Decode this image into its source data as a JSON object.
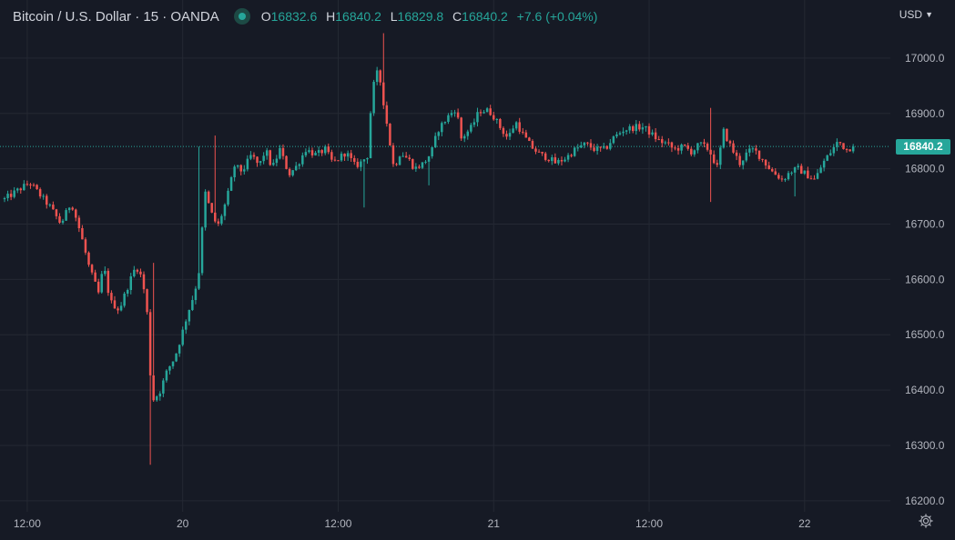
{
  "legend": {
    "symbol_title": "Bitcoin / U.S. Dollar · 15 · OANDA",
    "o_label": "O",
    "o_value": "16832.6",
    "h_label": "H",
    "h_value": "16840.2",
    "l_label": "L",
    "l_value": "16829.8",
    "c_label": "C",
    "c_value": "16840.2",
    "change": "+7.6 (+0.04%)"
  },
  "currency": {
    "label": "USD"
  },
  "last_price": {
    "label": "16840.2",
    "value": 16840.2
  },
  "colors": {
    "background": "#161a25",
    "grid": "#242833",
    "up": "#26a69a",
    "down": "#ef5350",
    "text": "#b2b5be"
  },
  "icons": {
    "settings": "gear-icon",
    "status": "market-status-dot-icon",
    "currency_menu": "chevron-down-icon"
  },
  "chart_data": {
    "type": "candlestick",
    "title": "Bitcoin / U.S. Dollar · 15 · OANDA",
    "y_ticks": [
      16200,
      16300,
      16400,
      16500,
      16600,
      16700,
      16800,
      16900,
      17000
    ],
    "y_tick_labels": [
      "16200.0",
      "16300.0",
      "16400.0",
      "16500.0",
      "16600.0",
      "16700.0",
      "16800.0",
      "16900.0",
      "17000.0"
    ],
    "x_ticks": [
      {
        "label": "12:00",
        "t": 0
      },
      {
        "label": "20",
        "t": 12
      },
      {
        "label": "12:00",
        "t": 24
      },
      {
        "label": "21",
        "t": 36
      },
      {
        "label": "12:00",
        "t": 48
      },
      {
        "label": "22",
        "t": 60
      }
    ],
    "x_unit": "hours since 19 12:00",
    "t_range": [
      -1.75,
      64.3
    ],
    "ylim": [
      16180,
      17105
    ],
    "grid": true,
    "last_price": 16840.2,
    "price_path": [
      [
        -1.75,
        16745
      ],
      [
        -0.8,
        16760
      ],
      [
        0.2,
        16775
      ],
      [
        0.9,
        16755
      ],
      [
        1.8,
        16730
      ],
      [
        2.6,
        16700
      ],
      [
        3.4,
        16740
      ],
      [
        4.1,
        16685
      ],
      [
        4.8,
        16620
      ],
      [
        5.5,
        16575
      ],
      [
        5.9,
        16625
      ],
      [
        6.4,
        16560
      ],
      [
        7.1,
        16545
      ],
      [
        7.8,
        16590
      ],
      [
        8.4,
        16625
      ],
      [
        8.9,
        16600
      ],
      [
        9.3,
        16530
      ],
      [
        9.6,
        16380
      ],
      [
        10.2,
        16395
      ],
      [
        10.8,
        16435
      ],
      [
        11.4,
        16460
      ],
      [
        11.8,
        16490
      ],
      [
        12.4,
        16540
      ],
      [
        12.9,
        16575
      ],
      [
        13.3,
        16620
      ],
      [
        13.7,
        16760
      ],
      [
        14.2,
        16720
      ],
      [
        14.7,
        16695
      ],
      [
        15.4,
        16745
      ],
      [
        16.0,
        16805
      ],
      [
        16.6,
        16795
      ],
      [
        17.3,
        16825
      ],
      [
        17.9,
        16805
      ],
      [
        18.4,
        16835
      ],
      [
        18.9,
        16800
      ],
      [
        19.5,
        16835
      ],
      [
        20.2,
        16790
      ],
      [
        20.8,
        16805
      ],
      [
        21.5,
        16835
      ],
      [
        22.3,
        16825
      ],
      [
        23.0,
        16835
      ],
      [
        23.6,
        16810
      ],
      [
        24.6,
        16830
      ],
      [
        25.3,
        16805
      ],
      [
        25.7,
        16810
      ],
      [
        26.3,
        16825
      ],
      [
        26.6,
        16940
      ],
      [
        27.1,
        16980
      ],
      [
        27.5,
        16920
      ],
      [
        27.9,
        16860
      ],
      [
        28.3,
        16800
      ],
      [
        28.8,
        16830
      ],
      [
        29.5,
        16815
      ],
      [
        29.9,
        16800
      ],
      [
        30.6,
        16810
      ],
      [
        31.2,
        16830
      ],
      [
        31.7,
        16870
      ],
      [
        32.5,
        16895
      ],
      [
        33.1,
        16910
      ],
      [
        33.5,
        16855
      ],
      [
        34.3,
        16875
      ],
      [
        34.9,
        16905
      ],
      [
        35.6,
        16905
      ],
      [
        36.0,
        16895
      ],
      [
        36.5,
        16875
      ],
      [
        37.1,
        16855
      ],
      [
        37.7,
        16885
      ],
      [
        38.3,
        16860
      ],
      [
        38.9,
        16840
      ],
      [
        39.6,
        16825
      ],
      [
        40.2,
        16820
      ],
      [
        40.8,
        16810
      ],
      [
        41.6,
        16820
      ],
      [
        42.3,
        16835
      ],
      [
        43.1,
        16845
      ],
      [
        43.8,
        16835
      ],
      [
        44.6,
        16835
      ],
      [
        45.2,
        16855
      ],
      [
        46.0,
        16870
      ],
      [
        46.9,
        16875
      ],
      [
        47.6,
        16875
      ],
      [
        48.3,
        16860
      ],
      [
        48.8,
        16850
      ],
      [
        49.4,
        16845
      ],
      [
        49.9,
        16835
      ],
      [
        50.7,
        16840
      ],
      [
        51.3,
        16830
      ],
      [
        51.9,
        16845
      ],
      [
        52.6,
        16835
      ],
      [
        53.3,
        16800
      ],
      [
        53.7,
        16870
      ],
      [
        54.4,
        16835
      ],
      [
        55.0,
        16810
      ],
      [
        55.6,
        16830
      ],
      [
        56.1,
        16835
      ],
      [
        56.8,
        16815
      ],
      [
        57.5,
        16795
      ],
      [
        58.3,
        16780
      ],
      [
        58.9,
        16795
      ],
      [
        59.5,
        16800
      ],
      [
        60.1,
        16790
      ],
      [
        60.8,
        16780
      ],
      [
        61.4,
        16810
      ],
      [
        62.0,
        16830
      ],
      [
        62.6,
        16850
      ],
      [
        63.2,
        16835
      ],
      [
        63.8,
        16840.2
      ]
    ],
    "extremes": [
      {
        "t": 9.4,
        "low": 16265
      },
      {
        "t": 9.8,
        "high": 16630
      },
      {
        "t": 13.2,
        "high": 16840
      },
      {
        "t": 14.4,
        "high": 16860
      },
      {
        "t": 26.0,
        "low": 16730
      },
      {
        "t": 27.4,
        "high": 17045
      },
      {
        "t": 30.9,
        "low": 16770
      },
      {
        "t": 52.7,
        "high": 16910
      },
      {
        "t": 52.8,
        "low": 16740
      },
      {
        "t": 59.3,
        "low": 16750
      },
      {
        "t": 62.6,
        "high": 16855
      }
    ]
  }
}
